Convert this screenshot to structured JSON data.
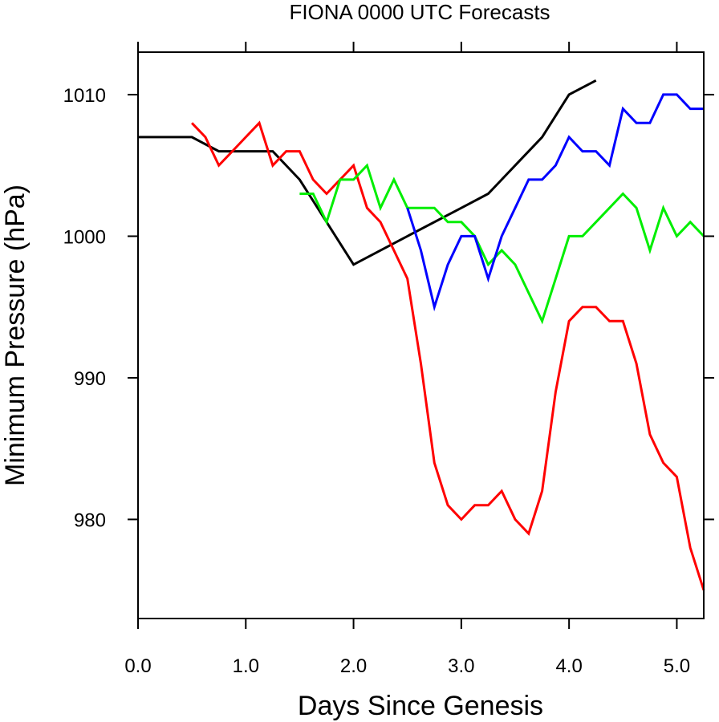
{
  "chart_data": {
    "type": "line",
    "title": "FIONA 0000 UTC Forecasts",
    "xlabel": "Days Since Genesis",
    "ylabel": "Minimum Pressure (hPa)",
    "xlim": [
      0,
      5.25
    ],
    "ylim": [
      973,
      1013
    ],
    "xticks": [
      0,
      1,
      2,
      3,
      4,
      5
    ],
    "xtick_labels": [
      "0.0",
      "1.0",
      "2.0",
      "3.0",
      "4.0",
      "5.0"
    ],
    "yticks": [
      980,
      990,
      1000,
      1010
    ],
    "ytick_labels": [
      "980",
      "990",
      "1000",
      "1010"
    ],
    "grid": false,
    "legend": "none",
    "series": [
      {
        "color": "#000000",
        "x": [
          0,
          0.5,
          0.75,
          1.0,
          1.25,
          1.5,
          2.0,
          2.5,
          3.0,
          3.25,
          3.5,
          3.75,
          4.0,
          4.25
        ],
        "y": [
          1007,
          1007,
          1006,
          1006,
          1006,
          1004,
          998,
          1000,
          1002,
          1003,
          1005,
          1007,
          1010,
          1011
        ]
      },
      {
        "color": "#ff0000",
        "x": [
          0.5,
          0.625,
          0.75,
          0.875,
          1.0,
          1.125,
          1.25,
          1.375,
          1.5,
          1.625,
          1.75,
          1.875,
          2.0,
          2.125,
          2.25,
          2.375,
          2.5,
          2.625,
          2.75,
          2.875,
          3.0,
          3.125,
          3.25,
          3.375,
          3.5,
          3.625,
          3.75,
          3.875,
          4.0,
          4.125,
          4.25,
          4.375,
          4.5,
          4.625,
          4.75,
          4.875,
          5.0,
          5.125,
          5.25
        ],
        "y": [
          1008,
          1007,
          1005,
          1006,
          1007,
          1008,
          1005,
          1006,
          1006,
          1004,
          1003,
          1004,
          1005,
          1002,
          1001,
          999,
          997,
          991,
          984,
          981,
          980,
          981,
          981,
          982,
          980,
          979,
          982,
          989,
          994,
          995,
          995,
          994,
          994,
          991,
          986,
          984,
          983,
          978,
          975
        ]
      },
      {
        "color": "#00ee00",
        "x": [
          1.5,
          1.625,
          1.75,
          1.875,
          2.0,
          2.125,
          2.25,
          2.375,
          2.5,
          2.625,
          2.75,
          2.875,
          3.0,
          3.125,
          3.25,
          3.375,
          3.5,
          3.625,
          3.75,
          3.875,
          4.0,
          4.125,
          4.25,
          4.375,
          4.5,
          4.625,
          4.75,
          4.875,
          5.0,
          5.125,
          5.25
        ],
        "y": [
          1003,
          1003,
          1001,
          1004,
          1004,
          1005,
          1002,
          1004,
          1002,
          1002,
          1002,
          1001,
          1001,
          1000,
          998,
          999,
          998,
          996,
          994,
          997,
          1000,
          1000,
          1001,
          1002,
          1003,
          1002,
          999,
          1002,
          1000,
          1001,
          1000
        ]
      },
      {
        "color": "#0000ff",
        "x": [
          2.5,
          2.625,
          2.75,
          2.875,
          3.0,
          3.125,
          3.25,
          3.375,
          3.5,
          3.625,
          3.75,
          3.875,
          4.0,
          4.125,
          4.25,
          4.375,
          4.5,
          4.625,
          4.75,
          4.875,
          5.0,
          5.125,
          5.25
        ],
        "y": [
          1002,
          999,
          995,
          998,
          1000,
          1000,
          997,
          1000,
          1002,
          1004,
          1004,
          1005,
          1007,
          1006,
          1006,
          1005,
          1009,
          1008,
          1008,
          1010,
          1010,
          1009,
          1009
        ]
      }
    ]
  }
}
